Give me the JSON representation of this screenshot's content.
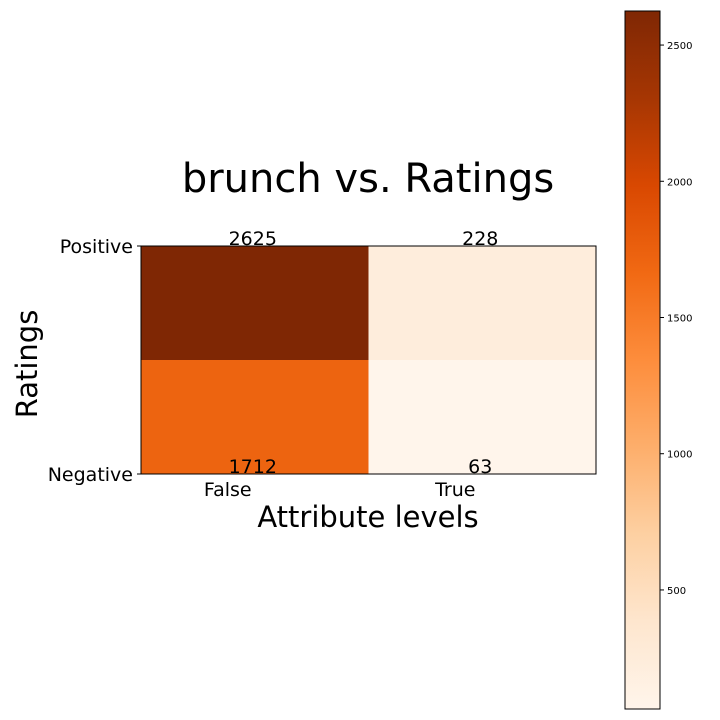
{
  "chart_data": {
    "type": "heatmap",
    "title": "brunch vs. Ratings",
    "xlabel": "Attribute levels",
    "ylabel": "Ratings",
    "x_categories": [
      "False",
      "True"
    ],
    "y_categories": [
      "Positive",
      "Negative"
    ],
    "values": [
      [
        2625,
        228
      ],
      [
        1712,
        63
      ]
    ],
    "colormap": "Oranges",
    "color_range": [
      63,
      2625
    ],
    "colorbar": {
      "ticks": [
        500,
        1000,
        1500,
        2000,
        2500
      ],
      "tick_labels": [
        "500",
        "1000",
        "1500",
        "2000",
        "2500"
      ],
      "placement": "right"
    },
    "grid": false
  }
}
